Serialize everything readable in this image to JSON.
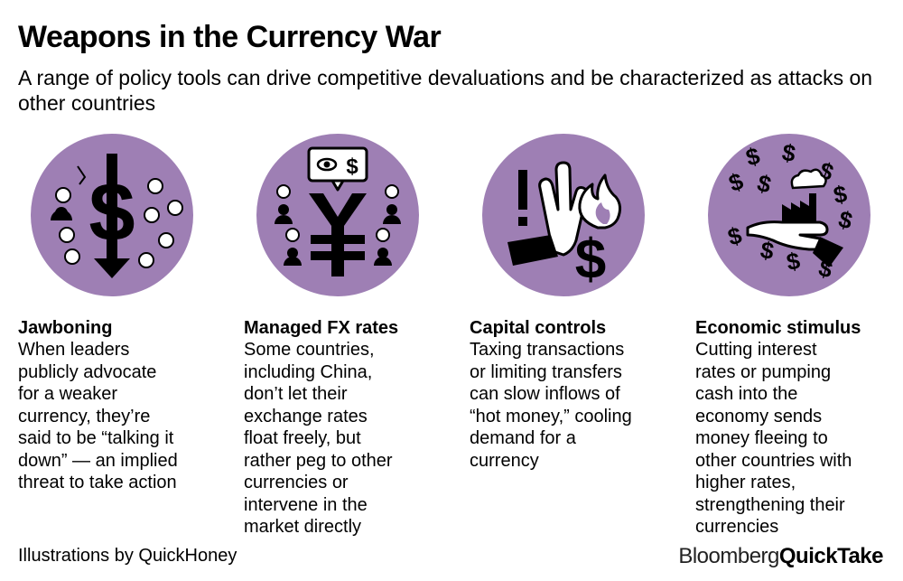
{
  "title": "Weapons in the Currency War",
  "subtitle": "A range of policy tools can drive competitive devaluations and be characterized as attacks on other countries",
  "colors": {
    "circle": "#9e7fb4",
    "ink": "#000000",
    "background": "#ffffff"
  },
  "categories": [
    {
      "title": "Jawboning",
      "icon": "dollar-arrow-down-icon",
      "description": "When leaders\npublicly advocate\nfor a weaker\ncurrency, they’re\nsaid to be “talking it\ndown” — an implied\nthreat to take action"
    },
    {
      "title": "Managed FX rates",
      "icon": "yen-watched-icon",
      "description": "Some countries,\nincluding China,\ndon’t let their\nexchange rates\nfloat freely, but\nrather peg to other\ncurrencies or\nintervene in the\nmarket directly"
    },
    {
      "title": "Capital controls",
      "icon": "hand-stop-fire-icon",
      "description": "Taxing transactions\nor limiting transfers\ncan slow inflows of\n“hot money,” cooling\ndemand for a\ncurrency"
    },
    {
      "title": "Economic stimulus",
      "icon": "hand-factory-dollars-icon",
      "description": "Cutting interest\nrates or pumping\ncash into the\neconomy sends\nmoney fleeing to\nother countries with\nhigher rates,\nstrengthening their\ncurrencies"
    }
  ],
  "credit": "Illustrations by QuickHoney",
  "brand": {
    "part1": "Bloomberg",
    "part2": "QuickTake"
  }
}
